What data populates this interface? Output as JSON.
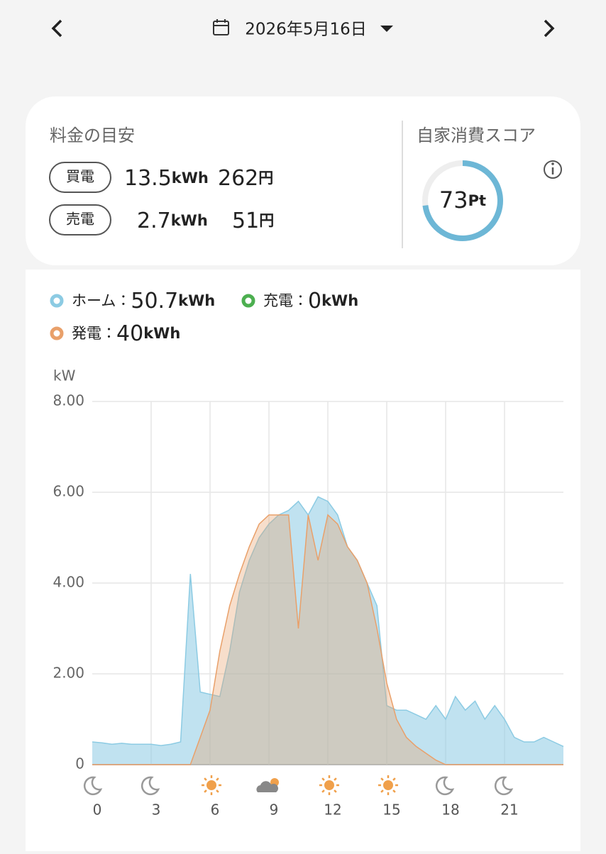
{
  "header": {
    "date": "2026年5月16日"
  },
  "units": {
    "energy": "kWh",
    "yen": "円",
    "score": "Pt",
    "separator": "："
  },
  "summary": {
    "title": "料金の目安",
    "rows": [
      {
        "label": "買電",
        "kwh": 13.5,
        "yen": 262
      },
      {
        "label": "売電",
        "kwh": 2.7,
        "yen": 51
      }
    ]
  },
  "score": {
    "title": "自家消費スコア",
    "value": 73
  },
  "chart_data": {
    "type": "area",
    "y_label": "kW",
    "x": [
      0,
      0.5,
      1,
      1.5,
      2,
      2.5,
      3,
      3.5,
      4,
      4.5,
      5,
      5.5,
      6,
      6.5,
      7,
      7.5,
      8,
      8.5,
      9,
      9.5,
      10,
      10.5,
      11,
      11.5,
      12,
      12.5,
      13,
      13.5,
      14,
      14.5,
      15,
      15.5,
      16,
      16.5,
      17,
      17.5,
      18,
      18.5,
      19,
      19.5,
      20,
      20.5,
      21,
      21.5,
      22,
      22.5,
      23,
      23.5,
      24
    ],
    "xlim": [
      0,
      24
    ],
    "xticks": [
      0,
      3,
      6,
      9,
      12,
      15,
      18,
      21
    ],
    "ylim": [
      0,
      8
    ],
    "yticks": [
      0,
      {
        "value": 2,
        "label": "2.00"
      },
      {
        "value": 4,
        "label": "4.00"
      },
      {
        "value": 6,
        "label": "6.00"
      },
      {
        "value": 8,
        "label": "8.00"
      }
    ],
    "grid": true,
    "series": [
      {
        "name": "ホーム",
        "color": "#8ccbe3",
        "total": 50.7,
        "values": [
          0.5,
          0.48,
          0.45,
          0.47,
          0.45,
          0.45,
          0.45,
          0.42,
          0.45,
          0.5,
          4.2,
          1.6,
          1.55,
          1.5,
          2.5,
          3.8,
          4.5,
          5.0,
          5.3,
          5.5,
          5.6,
          5.8,
          5.5,
          5.9,
          5.8,
          5.5,
          4.8,
          4.5,
          4.0,
          3.5,
          1.3,
          1.2,
          1.2,
          1.1,
          1.0,
          1.3,
          1.0,
          1.5,
          1.2,
          1.4,
          1.0,
          1.3,
          1.0,
          0.6,
          0.5,
          0.5,
          0.6,
          0.5,
          0.4
        ]
      },
      {
        "name": "充電",
        "color": "#4caf50",
        "total": 0
      },
      {
        "name": "発電",
        "color": "#e9a06a",
        "total": 40,
        "values": [
          0,
          0,
          0,
          0,
          0,
          0,
          0,
          0,
          0,
          0,
          0,
          0.6,
          1.2,
          2.5,
          3.5,
          4.2,
          4.8,
          5.3,
          5.5,
          5.5,
          5.5,
          3.0,
          5.5,
          4.5,
          5.5,
          5.3,
          4.8,
          4.5,
          4.0,
          3.0,
          1.8,
          1.0,
          0.6,
          0.4,
          0.25,
          0.1,
          0,
          0,
          0,
          0,
          0,
          0,
          0,
          0,
          0,
          0,
          0,
          0,
          0
        ]
      }
    ]
  }
}
